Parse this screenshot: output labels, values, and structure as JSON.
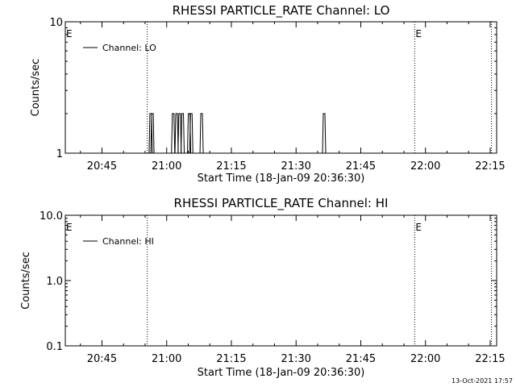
{
  "footer_timestamp": "13-Oct-2021 17:57",
  "chart_data": [
    {
      "type": "line",
      "title": "RHESSI PARTICLE_RATE Channel: LO",
      "xlabel": "Start Time (18-Jan-09 20:36:30)",
      "ylabel": "Counts/sec",
      "yscale": "log",
      "ylim": [
        1,
        10
      ],
      "ytick_values": [
        1,
        10
      ],
      "ytick_labels": [
        "1",
        "10"
      ],
      "xlim_minutes": [
        36.5,
        136.5
      ],
      "xtick_values": [
        45,
        60,
        75,
        90,
        105,
        120,
        135
      ],
      "xtick_labels": [
        "20:45",
        "21:00",
        "21:15",
        "21:30",
        "21:45",
        "22:00",
        "22:15"
      ],
      "legend": {
        "label": "Channel: LO",
        "placement": "top-left"
      },
      "event_lines_minutes": [
        55.5,
        117.5,
        135.3
      ],
      "event_marks": [
        {
          "at_minutes": 36.5,
          "label": "E"
        },
        {
          "at_minutes": 117.5,
          "label": "E"
        }
      ],
      "series": [
        {
          "name": "Channel: LO",
          "baseline": 1,
          "spikes": [
            {
              "x": 56.3,
              "y": 2
            },
            {
              "x": 56.7,
              "y": 2
            },
            {
              "x": 61.5,
              "y": 2
            },
            {
              "x": 62.3,
              "y": 2
            },
            {
              "x": 63.0,
              "y": 2
            },
            {
              "x": 63.7,
              "y": 2
            },
            {
              "x": 65.2,
              "y": 2
            },
            {
              "x": 65.7,
              "y": 2
            },
            {
              "x": 68.1,
              "y": 2
            },
            {
              "x": 96.5,
              "y": 2
            }
          ]
        }
      ]
    },
    {
      "type": "line",
      "title": "RHESSI PARTICLE_RATE Channel: HI",
      "xlabel": "Start Time (18-Jan-09 20:36:30)",
      "ylabel": "Counts/sec",
      "yscale": "log",
      "ylim": [
        0.1,
        10
      ],
      "ytick_values": [
        0.1,
        1,
        10
      ],
      "ytick_labels": [
        "0.1",
        "1.0",
        "10.0"
      ],
      "xlim_minutes": [
        36.5,
        136.5
      ],
      "xtick_values": [
        45,
        60,
        75,
        90,
        105,
        120,
        135
      ],
      "xtick_labels": [
        "20:45",
        "21:00",
        "21:15",
        "21:30",
        "21:45",
        "22:00",
        "22:15"
      ],
      "legend": {
        "label": "Channel: HI",
        "placement": "top-left"
      },
      "event_lines_minutes": [
        55.5,
        117.5,
        135.3
      ],
      "event_marks": [
        {
          "at_minutes": 36.5,
          "label": "E"
        },
        {
          "at_minutes": 117.5,
          "label": "E"
        }
      ],
      "series": [
        {
          "name": "Channel: HI",
          "baseline": null,
          "spikes": []
        }
      ]
    }
  ]
}
